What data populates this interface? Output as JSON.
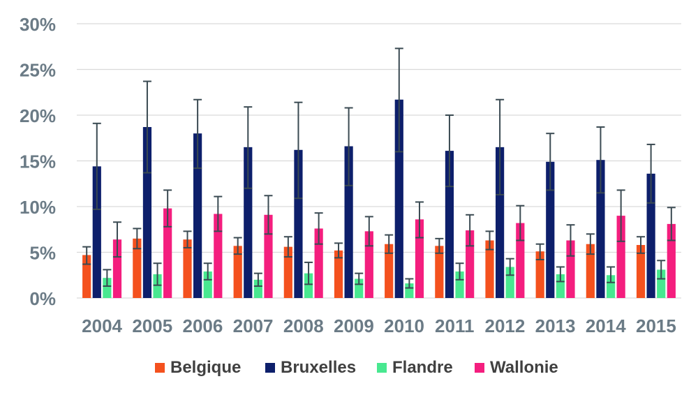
{
  "chart_data": {
    "type": "bar",
    "title": "",
    "xlabel": "",
    "ylabel": "",
    "ylim": [
      0,
      30
    ],
    "y_ticks": [
      "0%",
      "5%",
      "10%",
      "15%",
      "20%",
      "25%",
      "30%"
    ],
    "grid": true,
    "legend_position": "bottom",
    "error_bars": true,
    "categories": [
      "2004",
      "2005",
      "2006",
      "2007",
      "2008",
      "2009",
      "2010",
      "2011",
      "2012",
      "2013",
      "2014",
      "2015"
    ],
    "series": [
      {
        "name": "Belgique",
        "color": "#f4511e",
        "values": [
          4.7,
          6.5,
          6.4,
          5.7,
          5.6,
          5.2,
          5.9,
          5.7,
          6.3,
          5.1,
          5.9,
          5.8
        ],
        "error_low": [
          3.7,
          5.4,
          5.5,
          4.8,
          4.5,
          4.4,
          4.9,
          4.9,
          5.3,
          4.2,
          4.8,
          4.9
        ],
        "error_high": [
          5.6,
          7.6,
          7.3,
          6.6,
          6.7,
          6.0,
          6.9,
          6.5,
          7.3,
          5.9,
          7.0,
          6.7
        ]
      },
      {
        "name": "Bruxelles",
        "color": "#0d1f6b",
        "values": [
          14.4,
          18.7,
          18.0,
          16.5,
          16.2,
          16.6,
          21.7,
          16.1,
          16.5,
          14.9,
          15.1,
          13.6
        ],
        "error_low": [
          9.7,
          13.7,
          14.2,
          12.0,
          10.9,
          12.3,
          16.0,
          12.2,
          11.3,
          11.8,
          11.5,
          10.4
        ],
        "error_high": [
          19.1,
          23.7,
          21.7,
          20.9,
          21.4,
          20.8,
          27.3,
          20.0,
          21.7,
          18.0,
          18.7,
          16.8
        ]
      },
      {
        "name": "Flandre",
        "color": "#48e890",
        "values": [
          2.2,
          2.6,
          2.9,
          2.0,
          2.7,
          2.1,
          1.6,
          2.9,
          3.4,
          2.6,
          2.5,
          3.1
        ],
        "error_low": [
          1.3,
          1.4,
          2.0,
          1.3,
          1.5,
          1.5,
          1.1,
          2.0,
          2.5,
          1.8,
          1.7,
          2.1
        ],
        "error_high": [
          3.1,
          3.8,
          3.8,
          2.7,
          3.9,
          2.7,
          2.1,
          3.8,
          4.3,
          3.4,
          3.4,
          4.1
        ]
      },
      {
        "name": "Wallonie",
        "color": "#f41e7e",
        "values": [
          6.4,
          9.8,
          9.2,
          9.1,
          7.6,
          7.3,
          8.6,
          7.4,
          8.2,
          6.3,
          9.0,
          8.1
        ],
        "error_low": [
          4.5,
          7.8,
          7.3,
          7.0,
          5.9,
          5.7,
          6.6,
          5.7,
          6.3,
          4.6,
          6.2,
          6.3
        ],
        "error_high": [
          8.3,
          11.8,
          11.1,
          11.2,
          9.3,
          8.9,
          10.5,
          9.1,
          10.1,
          8.0,
          11.8,
          9.9
        ]
      }
    ]
  }
}
